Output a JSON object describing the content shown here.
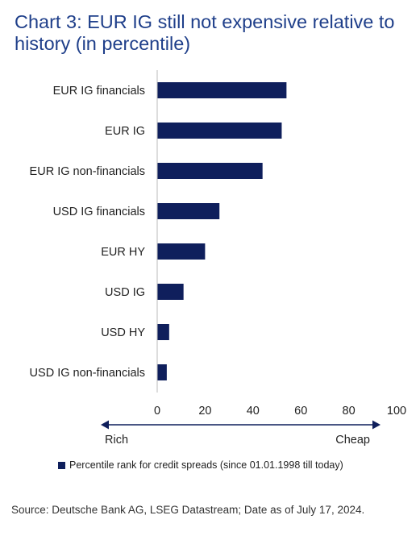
{
  "title": "Chart 3: EUR IG still not expensive relative to history (in percentile)",
  "colors": {
    "bar": "#0f1f5c",
    "title": "#1f3f8a",
    "text": "#222222",
    "axis": "#bbbbbb"
  },
  "chart_data": {
    "type": "bar",
    "orientation": "horizontal",
    "categories": [
      "EUR IG financials",
      "EUR IG",
      "EUR IG non-financials",
      "USD IG financials",
      "EUR HY",
      "USD IG",
      "USD HY",
      "USD IG non-financials"
    ],
    "series": [
      {
        "name": "Percentile rank for credit spreads (since 01.01.1998 till today)",
        "values": [
          54,
          52,
          44,
          26,
          20,
          11,
          5,
          4
        ]
      }
    ],
    "xlim": [
      0,
      100
    ],
    "xticks": [
      0,
      20,
      40,
      60,
      80,
      100
    ],
    "x_direction": {
      "left_label": "Rich",
      "right_label": "Cheap"
    },
    "legend_position": "bottom",
    "grid": false
  },
  "source": "Source: Deutsche Bank AG, LSEG Datastream; Date as of July 17, 2024."
}
